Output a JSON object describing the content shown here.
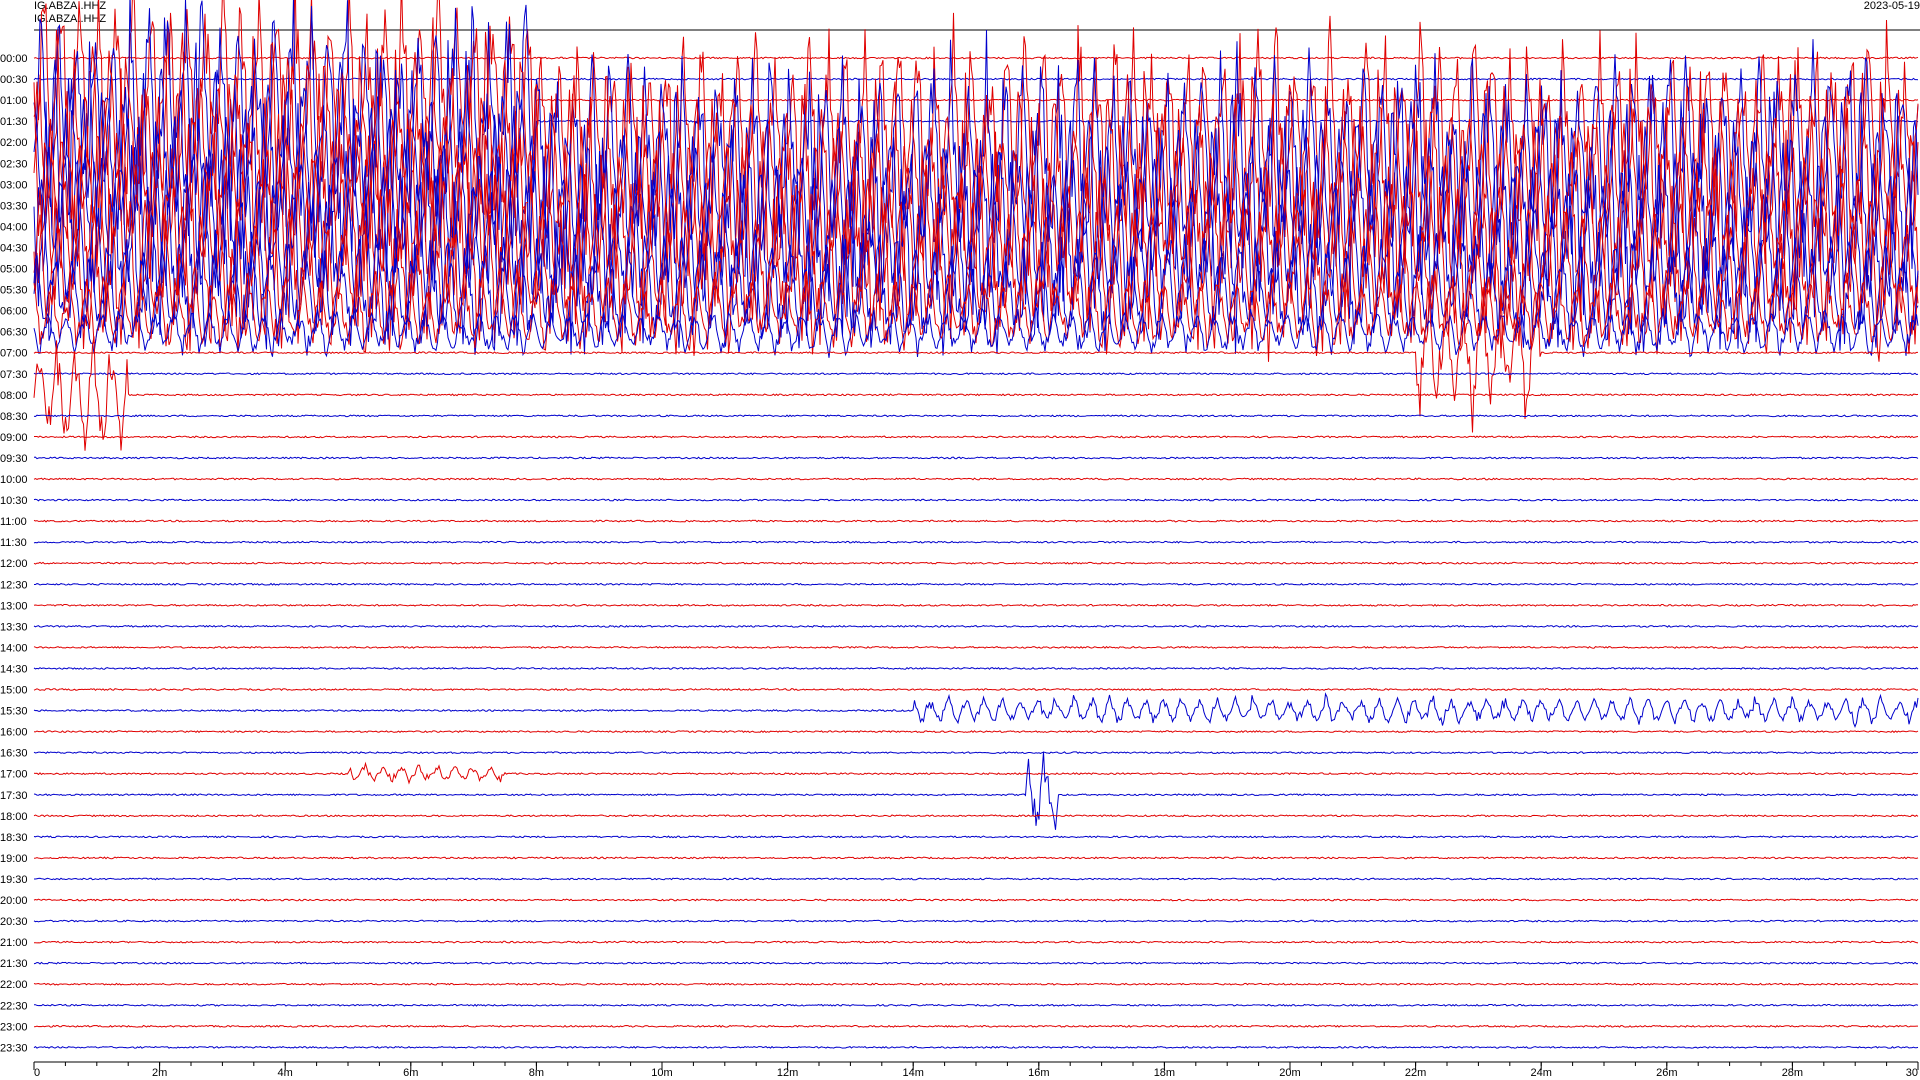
{
  "header": {
    "station_line_1": "IG.ABZA..HHZ",
    "station_line_2": "IG.ABZA..HHZ",
    "date": "2023-05-19"
  },
  "chart_data": {
    "type": "line",
    "subtype": "helicorder",
    "title": "",
    "xlabel": "",
    "ylabel": "",
    "xlim": [
      0,
      30
    ],
    "x_ticks": [
      "0",
      "2m",
      "4m",
      "6m",
      "8m",
      "10m",
      "12m",
      "14m",
      "16m",
      "18m",
      "20m",
      "22m",
      "24m",
      "26m",
      "28m",
      "30"
    ],
    "x_tick_values": [
      0,
      2,
      4,
      6,
      8,
      10,
      12,
      14,
      16,
      18,
      20,
      22,
      24,
      26,
      28,
      30
    ],
    "minor_tick_step_minutes": 0.5,
    "row_labels": [
      "00:00",
      "00:30",
      "01:00",
      "01:30",
      "02:00",
      "02:30",
      "03:00",
      "03:30",
      "04:00",
      "04:30",
      "05:00",
      "05:30",
      "06:00",
      "06:30",
      "07:00",
      "07:30",
      "08:00",
      "08:30",
      "09:00",
      "09:30",
      "10:00",
      "10:30",
      "11:00",
      "11:30",
      "12:00",
      "12:30",
      "13:00",
      "13:30",
      "14:00",
      "14:30",
      "15:00",
      "15:30",
      "16:00",
      "16:30",
      "17:00",
      "17:30",
      "18:00",
      "18:30",
      "19:00",
      "19:30",
      "20:00",
      "20:30",
      "21:00",
      "21:30",
      "22:00",
      "22:30",
      "23:00",
      "23:30"
    ],
    "row_colors": [
      "#e00000",
      "#0000cc"
    ],
    "grid": false,
    "legend": "none",
    "events": [
      {
        "row": 2,
        "start_min": 0,
        "end_min": 8.0,
        "amplitude": 1.0
      },
      {
        "row": 3,
        "start_min": 0,
        "end_min": 8.0,
        "amplitude": 1.0
      },
      {
        "row": 4,
        "start_min": 0,
        "end_min": 30,
        "amplitude": 0.95
      },
      {
        "row": 5,
        "start_min": 0,
        "end_min": 30,
        "amplitude": 0.95
      },
      {
        "row": 6,
        "start_min": 0,
        "end_min": 30,
        "amplitude": 0.9
      },
      {
        "row": 7,
        "start_min": 0,
        "end_min": 30,
        "amplitude": 0.9
      },
      {
        "row": 8,
        "start_min": 0,
        "end_min": 30,
        "amplitude": 0.85
      },
      {
        "row": 9,
        "start_min": 0,
        "end_min": 30,
        "amplitude": 0.8
      },
      {
        "row": 10,
        "start_min": 0,
        "end_min": 30,
        "amplitude": 0.7
      },
      {
        "row": 11,
        "start_min": 0,
        "end_min": 30,
        "amplitude": 0.5
      },
      {
        "row": 12,
        "start_min": 0,
        "end_min": 30,
        "amplitude": 0.35
      },
      {
        "row": 13,
        "start_min": 0,
        "end_min": 30,
        "amplitude": 0.2
      },
      {
        "row": 14,
        "start_min": 22.0,
        "end_min": 24.0,
        "amplitude": 0.6
      },
      {
        "row": 16,
        "start_min": 0,
        "end_min": 1.5,
        "amplitude": 0.5
      },
      {
        "row": 31,
        "start_min": 14.0,
        "end_min": 30,
        "amplitude": 0.12
      },
      {
        "row": 35,
        "start_min": 15.8,
        "end_min": 16.3,
        "amplitude": 0.45
      },
      {
        "row": 34,
        "start_min": 5.0,
        "end_min": 7.5,
        "amplitude": 0.08
      }
    ]
  }
}
